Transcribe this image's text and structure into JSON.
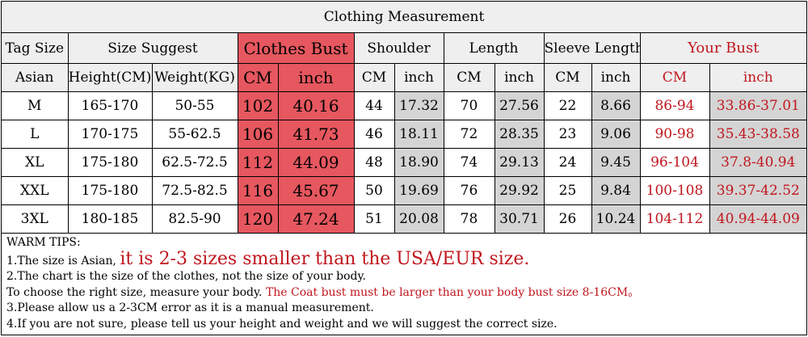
{
  "title": "Clothing Measurement",
  "header_row1": [
    "Tag Size",
    "Size Suggest",
    "Clothes Bust",
    "Shoulder",
    "Length",
    "Sleeve Length",
    "Your Bust"
  ],
  "header_row2": [
    "Asian",
    "Height(CM)",
    "Weight(KG)",
    "CM",
    "inch",
    "CM",
    "inch",
    "CM",
    "inch",
    "CM",
    "inch",
    "CM",
    "inch"
  ],
  "rows": [
    [
      "M",
      "165-170",
      "50-55",
      "102",
      "40.16",
      "44",
      "17.32",
      "70",
      "27.56",
      "22",
      "8.66",
      "86-94",
      "33.86-37.01"
    ],
    [
      "L",
      "170-175",
      "55-62.5",
      "106",
      "41.73",
      "46",
      "18.11",
      "72",
      "28.35",
      "23",
      "9.06",
      "90-98",
      "35.43-38.58"
    ],
    [
      "XL",
      "175-180",
      "62.5-72.5",
      "112",
      "44.09",
      "48",
      "18.90",
      "74",
      "29.13",
      "24",
      "9.45",
      "96-104",
      "37.8-40.94"
    ],
    [
      "XXL",
      "175-180",
      "72.5-82.5",
      "116",
      "45.67",
      "50",
      "19.69",
      "76",
      "29.92",
      "25",
      "9.84",
      "100-108",
      "39.37-42.52"
    ],
    [
      "3XL",
      "180-185",
      "82.5-90",
      "120",
      "47.24",
      "51",
      "20.08",
      "78",
      "30.71",
      "26",
      "10.24",
      "104-112",
      "40.94-44.09"
    ]
  ],
  "tips": {
    "heading": "WARM TIPS:",
    "line1_prefix": "1.The size is Asian,",
    "line1_emphasis": "it is 2-3 sizes smaller than the USA/EUR size.",
    "line2": "2.The chart is the size of the clothes, not the size of your body.",
    "line3_prefix": "To choose the right size, measure your body.",
    "line3_emphasis": "The Coat bust must be larger than your body bust size 8-16CM。",
    "line4": "3.Please allow us a 2-3CM error as it is a manual measurement.",
    "line5": "4.If you are not sure, please tell us your height and weight and we will suggest the correct size."
  },
  "colors": {
    "pink_highlight": "#e6575f",
    "red_text": "#c0161e",
    "header_bg": "#efefef",
    "grey_cell": "#d4d4d4"
  }
}
